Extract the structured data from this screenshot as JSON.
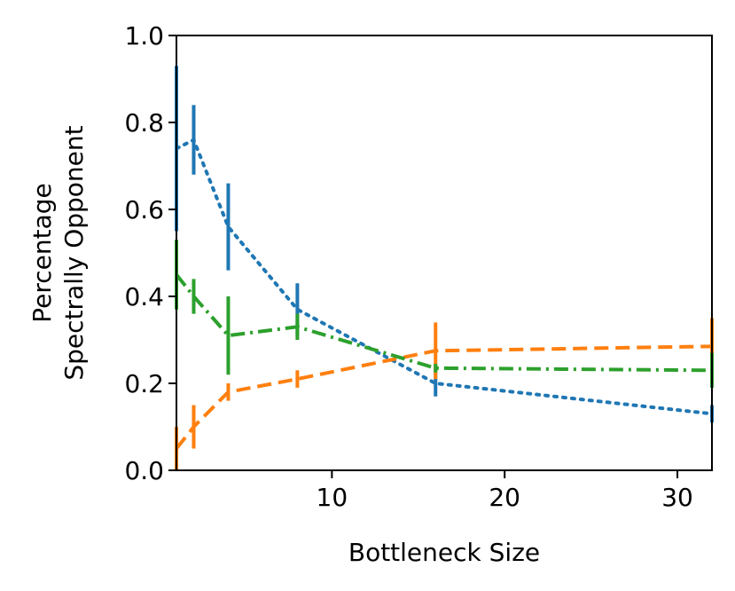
{
  "chart_data": {
    "type": "line",
    "title": "",
    "xlabel": "Bottleneck Size",
    "ylabel": [
      "Percentage",
      "Spectrally Opponent"
    ],
    "xlim": [
      1,
      32
    ],
    "ylim": [
      0.0,
      1.0
    ],
    "xticks": [
      10,
      20,
      30
    ],
    "yticks": [
      0.0,
      0.2,
      0.4,
      0.6,
      0.8,
      1.0
    ],
    "xtick_labels": [
      "10",
      "20",
      "30"
    ],
    "ytick_labels": [
      "0.0",
      "0.2",
      "0.4",
      "0.6",
      "0.8",
      "1.0"
    ],
    "grid": false,
    "legend": false,
    "x": [
      1,
      2,
      4,
      8,
      16,
      32
    ],
    "series": [
      {
        "color": "#1f77b4",
        "linestyle": "dotted",
        "values": [
          0.74,
          0.76,
          0.56,
          0.37,
          0.2,
          0.13
        ],
        "errors": [
          0.19,
          0.08,
          0.1,
          0.06,
          0.03,
          0.02
        ]
      },
      {
        "color": "#ff7f0e",
        "linestyle": "dashed",
        "values": [
          0.05,
          0.1,
          0.18,
          0.21,
          0.275,
          0.285
        ],
        "errors": [
          0.05,
          0.05,
          0.02,
          0.02,
          0.065,
          0.065
        ]
      },
      {
        "color": "#2ca02c",
        "linestyle": "dashdot",
        "values": [
          0.45,
          0.4,
          0.31,
          0.33,
          0.235,
          0.23
        ],
        "errors": [
          0.08,
          0.04,
          0.09,
          0.03,
          0.01,
          0.04
        ]
      }
    ]
  }
}
